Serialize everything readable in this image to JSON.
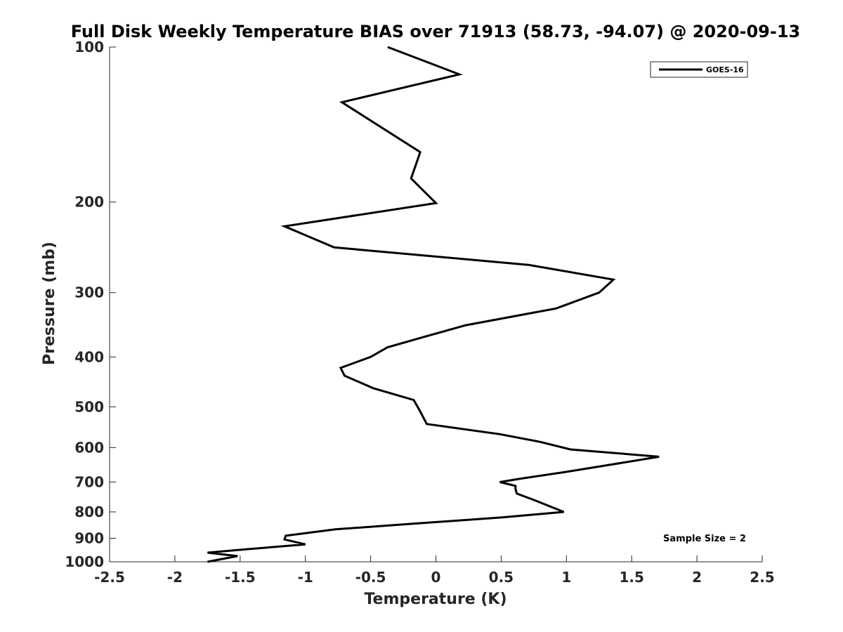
{
  "chart_data": {
    "type": "line",
    "title": "Full Disk Weekly Temperature BIAS over 71913 (58.73, -94.07) @ 2020-09-13",
    "xlabel": "Temperature (K)",
    "ylabel": "Pressure (mb)",
    "xlim": [
      -2.5,
      2.5
    ],
    "ylim": [
      1000,
      100
    ],
    "y_scale": "log",
    "y_reversed": true,
    "x_ticks": [
      "-2.5",
      "-2",
      "-1.5",
      "-1",
      "-0.5",
      "0",
      "0.5",
      "1",
      "1.5",
      "2",
      "2.5"
    ],
    "x_tick_values": [
      -2.5,
      -2,
      -1.5,
      -1,
      -0.5,
      0,
      0.5,
      1,
      1.5,
      2,
      2.5
    ],
    "y_ticks": [
      "100",
      "200",
      "300",
      "400",
      "500",
      "600",
      "700",
      "800",
      "900",
      "1000"
    ],
    "y_tick_values": [
      100,
      200,
      300,
      400,
      500,
      600,
      700,
      800,
      900,
      1000
    ],
    "grid": false,
    "legend_position": "top-right",
    "annotation": "Sample Size = 2",
    "line_color": "#000000",
    "series": [
      {
        "name": "GOES-16",
        "x": [
          -0.37,
          0.18,
          -0.72,
          -0.12,
          -0.19,
          0.0,
          -1.16,
          -0.78,
          0.71,
          1.36,
          1.25,
          0.92,
          0.23,
          -0.08,
          -0.37,
          -0.5,
          -0.73,
          -0.7,
          -0.48,
          -0.17,
          -0.13,
          -0.07,
          0.49,
          0.8,
          1.03,
          1.71,
          1.35,
          0.98,
          0.64,
          0.49,
          0.61,
          0.61,
          0.62,
          0.76,
          0.98,
          0.51,
          -0.22,
          -0.77,
          -1.15,
          -1.16,
          -1.0,
          -1.44,
          -1.75,
          -1.52,
          -1.75
        ],
        "y": [
          100,
          113,
          128,
          160,
          180,
          201,
          223,
          245,
          265,
          283,
          300,
          322,
          347,
          365,
          383,
          400,
          420,
          435,
          460,
          485,
          505,
          540,
          565,
          585,
          605,
          625,
          647,
          670,
          690,
          700,
          712,
          722,
          737,
          760,
          800,
          820,
          845,
          865,
          890,
          905,
          925,
          945,
          960,
          975,
          1000
        ]
      }
    ]
  }
}
